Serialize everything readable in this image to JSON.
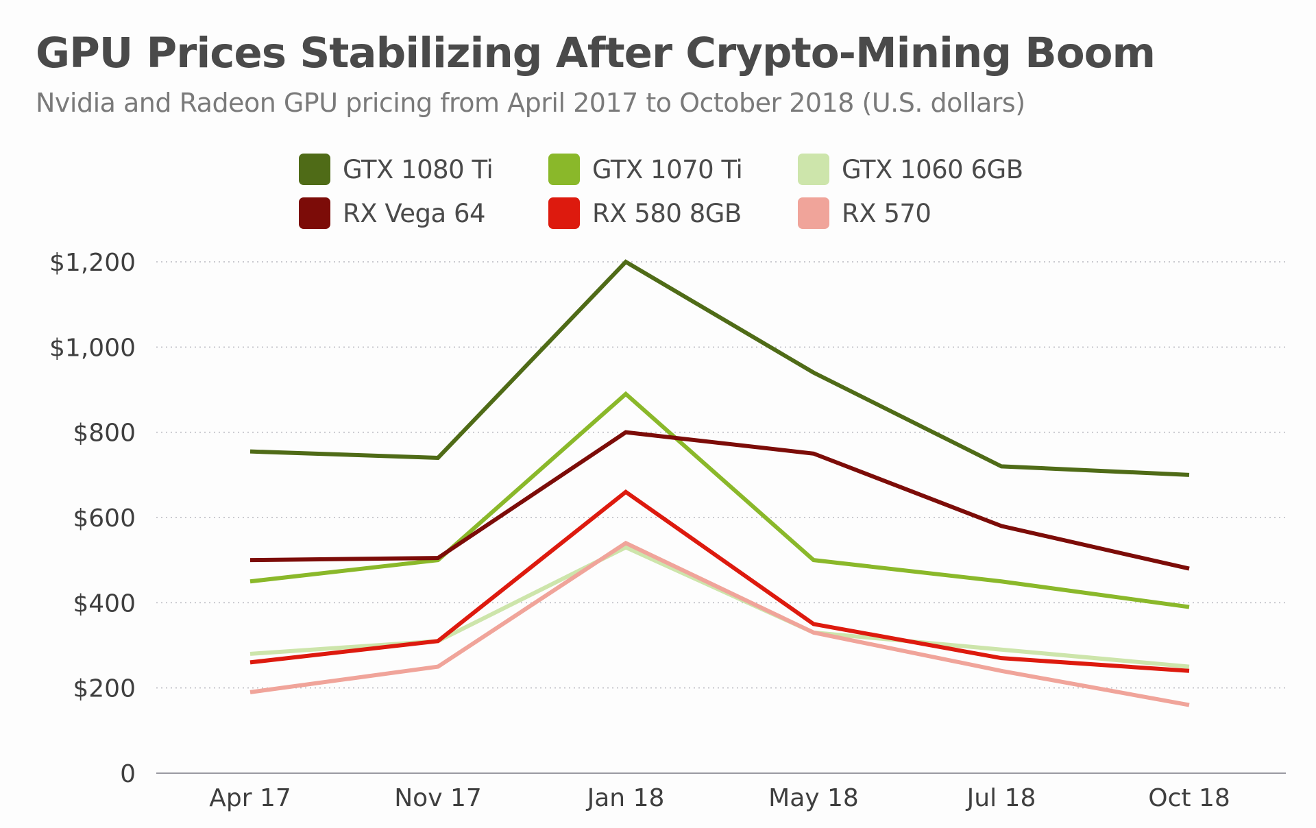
{
  "chart_data": {
    "type": "line",
    "title": "GPU Prices Stabilizing After Crypto-Mining Boom",
    "subtitle": "Nvidia and Radeon GPU pricing from April 2017 to October 2018 (U.S. dollars)",
    "xlabel": "",
    "ylabel": "",
    "categories": [
      "Apr 17",
      "Nov 17",
      "Jan 18",
      "May 18",
      "Jul 18",
      "Oct 18"
    ],
    "ylim": [
      0,
      1200
    ],
    "yticks": [
      0,
      200,
      400,
      600,
      800,
      1000,
      1200
    ],
    "ytick_labels": [
      "0",
      "$200",
      "$400",
      "$600",
      "$800",
      "$1,000",
      "$1,200"
    ],
    "grid": true,
    "legend_position": "top-center",
    "series": [
      {
        "name": "GTX 1080 Ti",
        "color": "#4f6b17",
        "values": [
          755,
          740,
          1200,
          940,
          720,
          700
        ]
      },
      {
        "name": "GTX 1070 Ti",
        "color": "#8ab82a",
        "values": [
          450,
          500,
          890,
          500,
          450,
          390
        ]
      },
      {
        "name": "GTX 1060 6GB",
        "color": "#cde5ab",
        "values": [
          280,
          310,
          530,
          330,
          290,
          250
        ]
      },
      {
        "name": "RX Vega 64",
        "color": "#7c0c08",
        "values": [
          500,
          505,
          800,
          750,
          580,
          480
        ]
      },
      {
        "name": "RX 580 8GB",
        "color": "#dd1a0e",
        "values": [
          260,
          310,
          660,
          350,
          270,
          240
        ]
      },
      {
        "name": "RX 570",
        "color": "#f0a49a",
        "values": [
          190,
          250,
          540,
          330,
          240,
          160
        ]
      }
    ]
  }
}
